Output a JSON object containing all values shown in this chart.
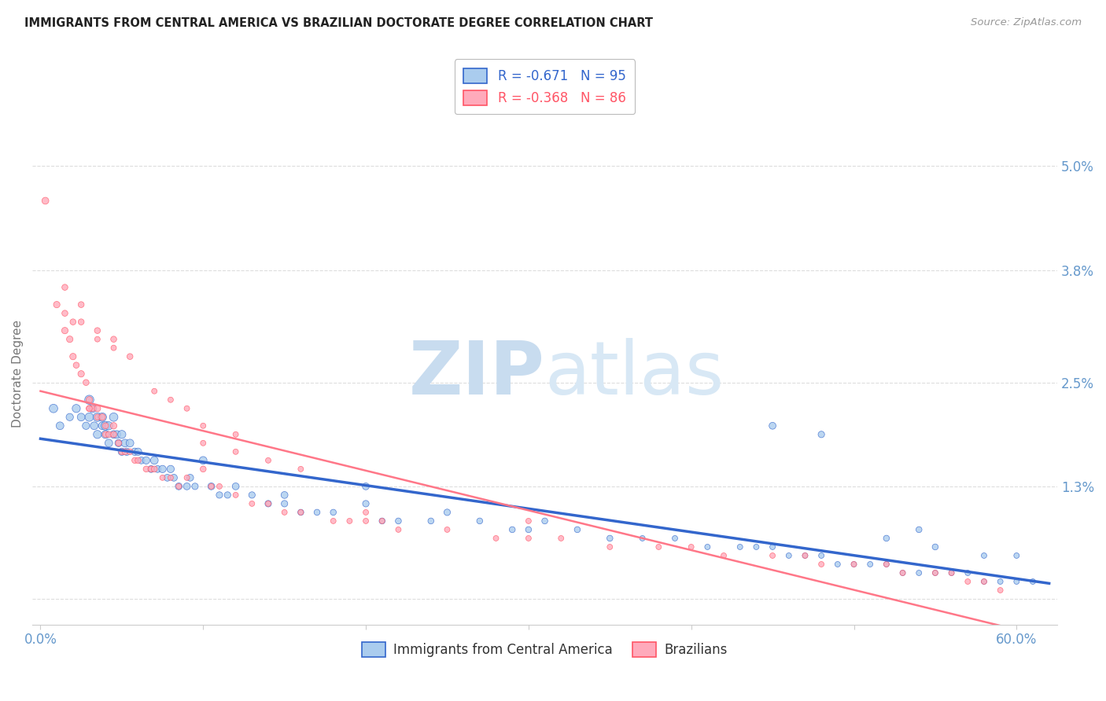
{
  "title": "IMMIGRANTS FROM CENTRAL AMERICA VS BRAZILIAN DOCTORATE DEGREE CORRELATION CHART",
  "source": "Source: ZipAtlas.com",
  "ylabel": "Doctorate Degree",
  "yticks": [
    0.0,
    0.013,
    0.025,
    0.038,
    0.05
  ],
  "ytick_labels": [
    "",
    "1.3%",
    "2.5%",
    "3.8%",
    "5.0%"
  ],
  "xtick_labels": [
    "0.0%",
    "",
    "",
    "",
    "",
    "",
    "60.0%"
  ],
  "xticks": [
    0.0,
    0.1,
    0.2,
    0.3,
    0.4,
    0.5,
    0.6
  ],
  "xlim": [
    -0.005,
    0.625
  ],
  "ylim": [
    -0.003,
    0.055
  ],
  "legend1_label": "R = -0.671   N = 95",
  "legend2_label": "R = -0.368   N = 86",
  "scatter1_color": "#AACCEE",
  "scatter2_color": "#FFAABB",
  "line1_color": "#3366CC",
  "line2_color": "#FF7788",
  "watermark_zip": "ZIP",
  "watermark_atlas": "atlas",
  "background_color": "#FFFFFF",
  "grid_color": "#DDDDDD",
  "axis_color": "#6699CC",
  "bottom_legend1": "Immigrants from Central America",
  "bottom_legend2": "Brazilians",
  "blue_scatter_x": [
    0.008,
    0.012,
    0.018,
    0.022,
    0.025,
    0.028,
    0.03,
    0.03,
    0.032,
    0.033,
    0.035,
    0.035,
    0.038,
    0.038,
    0.04,
    0.04,
    0.042,
    0.042,
    0.045,
    0.045,
    0.047,
    0.048,
    0.05,
    0.05,
    0.052,
    0.053,
    0.055,
    0.058,
    0.06,
    0.062,
    0.065,
    0.068,
    0.07,
    0.072,
    0.075,
    0.078,
    0.08,
    0.082,
    0.085,
    0.09,
    0.092,
    0.095,
    0.1,
    0.105,
    0.11,
    0.115,
    0.12,
    0.13,
    0.14,
    0.15,
    0.16,
    0.17,
    0.18,
    0.2,
    0.21,
    0.22,
    0.24,
    0.25,
    0.27,
    0.29,
    0.31,
    0.33,
    0.35,
    0.37,
    0.39,
    0.41,
    0.43,
    0.44,
    0.45,
    0.46,
    0.47,
    0.48,
    0.49,
    0.5,
    0.51,
    0.52,
    0.53,
    0.54,
    0.55,
    0.56,
    0.57,
    0.58,
    0.59,
    0.6,
    0.61,
    0.45,
    0.48,
    0.52,
    0.55,
    0.58,
    0.6,
    0.54,
    0.2,
    0.15,
    0.3
  ],
  "blue_scatter_y": [
    0.022,
    0.02,
    0.021,
    0.022,
    0.021,
    0.02,
    0.023,
    0.021,
    0.022,
    0.02,
    0.021,
    0.019,
    0.021,
    0.02,
    0.02,
    0.019,
    0.02,
    0.018,
    0.021,
    0.019,
    0.019,
    0.018,
    0.019,
    0.017,
    0.018,
    0.017,
    0.018,
    0.017,
    0.017,
    0.016,
    0.016,
    0.015,
    0.016,
    0.015,
    0.015,
    0.014,
    0.015,
    0.014,
    0.013,
    0.013,
    0.014,
    0.013,
    0.016,
    0.013,
    0.012,
    0.012,
    0.013,
    0.012,
    0.011,
    0.011,
    0.01,
    0.01,
    0.01,
    0.013,
    0.009,
    0.009,
    0.009,
    0.01,
    0.009,
    0.008,
    0.009,
    0.008,
    0.007,
    0.007,
    0.007,
    0.006,
    0.006,
    0.006,
    0.006,
    0.005,
    0.005,
    0.005,
    0.004,
    0.004,
    0.004,
    0.004,
    0.003,
    0.003,
    0.003,
    0.003,
    0.003,
    0.002,
    0.002,
    0.002,
    0.002,
    0.02,
    0.019,
    0.007,
    0.006,
    0.005,
    0.005,
    0.008,
    0.011,
    0.012,
    0.008
  ],
  "blue_scatter_sizes": [
    60,
    50,
    45,
    55,
    50,
    45,
    70,
    60,
    55,
    50,
    65,
    55,
    60,
    50,
    65,
    55,
    55,
    50,
    60,
    50,
    50,
    45,
    55,
    45,
    50,
    45,
    50,
    45,
    45,
    40,
    45,
    40,
    50,
    40,
    45,
    40,
    45,
    40,
    40,
    40,
    40,
    35,
    50,
    40,
    35,
    35,
    40,
    35,
    35,
    35,
    30,
    30,
    30,
    40,
    30,
    30,
    30,
    35,
    30,
    30,
    30,
    30,
    30,
    25,
    25,
    25,
    25,
    25,
    25,
    25,
    25,
    25,
    25,
    25,
    25,
    25,
    25,
    25,
    25,
    25,
    25,
    25,
    25,
    25,
    25,
    40,
    35,
    30,
    30,
    25,
    25,
    30,
    35,
    40,
    30
  ],
  "pink_scatter_x": [
    0.003,
    0.01,
    0.015,
    0.018,
    0.02,
    0.022,
    0.025,
    0.028,
    0.03,
    0.03,
    0.032,
    0.035,
    0.035,
    0.038,
    0.04,
    0.04,
    0.042,
    0.045,
    0.045,
    0.048,
    0.05,
    0.052,
    0.055,
    0.058,
    0.06,
    0.065,
    0.068,
    0.07,
    0.075,
    0.08,
    0.085,
    0.09,
    0.1,
    0.105,
    0.11,
    0.12,
    0.13,
    0.14,
    0.15,
    0.16,
    0.18,
    0.19,
    0.2,
    0.21,
    0.22,
    0.25,
    0.28,
    0.3,
    0.32,
    0.35,
    0.38,
    0.4,
    0.42,
    0.45,
    0.47,
    0.48,
    0.5,
    0.52,
    0.53,
    0.55,
    0.56,
    0.57,
    0.58,
    0.59,
    0.015,
    0.025,
    0.015,
    0.02,
    0.035,
    0.045,
    0.055,
    0.07,
    0.08,
    0.09,
    0.1,
    0.12,
    0.2,
    0.3,
    0.1,
    0.12,
    0.14,
    0.16,
    0.035,
    0.045,
    0.025,
    0.03
  ],
  "pink_scatter_y": [
    0.046,
    0.034,
    0.031,
    0.03,
    0.028,
    0.027,
    0.026,
    0.025,
    0.023,
    0.022,
    0.022,
    0.022,
    0.021,
    0.021,
    0.02,
    0.019,
    0.019,
    0.02,
    0.019,
    0.018,
    0.017,
    0.017,
    0.017,
    0.016,
    0.016,
    0.015,
    0.015,
    0.015,
    0.014,
    0.014,
    0.013,
    0.014,
    0.015,
    0.013,
    0.013,
    0.012,
    0.011,
    0.011,
    0.01,
    0.01,
    0.009,
    0.009,
    0.009,
    0.009,
    0.008,
    0.008,
    0.007,
    0.007,
    0.007,
    0.006,
    0.006,
    0.006,
    0.005,
    0.005,
    0.005,
    0.004,
    0.004,
    0.004,
    0.003,
    0.003,
    0.003,
    0.002,
    0.002,
    0.001,
    0.036,
    0.034,
    0.033,
    0.032,
    0.031,
    0.03,
    0.028,
    0.024,
    0.023,
    0.022,
    0.02,
    0.019,
    0.01,
    0.009,
    0.018,
    0.017,
    0.016,
    0.015,
    0.03,
    0.029,
    0.032,
    0.022
  ],
  "pink_scatter_sizes": [
    40,
    35,
    35,
    35,
    35,
    30,
    35,
    30,
    35,
    30,
    30,
    35,
    30,
    35,
    30,
    30,
    30,
    35,
    30,
    30,
    30,
    30,
    30,
    30,
    30,
    30,
    30,
    30,
    25,
    25,
    25,
    25,
    30,
    25,
    25,
    25,
    25,
    25,
    25,
    25,
    25,
    25,
    25,
    25,
    25,
    25,
    25,
    25,
    25,
    25,
    25,
    25,
    25,
    25,
    25,
    25,
    25,
    25,
    25,
    25,
    25,
    25,
    25,
    25,
    30,
    30,
    30,
    30,
    30,
    30,
    30,
    25,
    25,
    25,
    25,
    25,
    25,
    25,
    25,
    25,
    25,
    25,
    25,
    25,
    30,
    30
  ]
}
